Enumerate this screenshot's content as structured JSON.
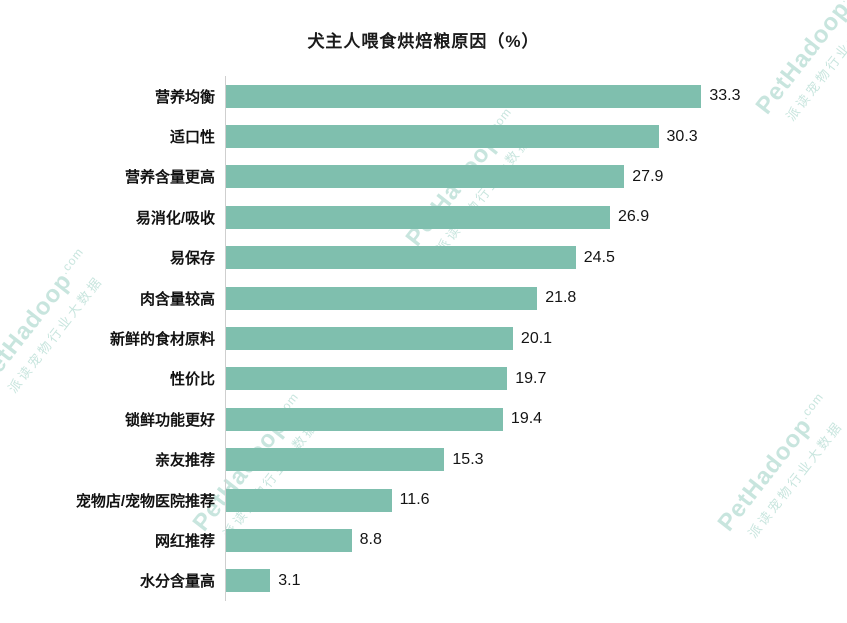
{
  "title": "犬主人喂食烘焙粮原因（%）",
  "watermark": {
    "brand": "PetHadoop",
    "brand_suffix": ".com",
    "text": "派读宠物行业大数据"
  },
  "colors": {
    "bar": "#7fbfae",
    "watermark": "rgba(134,198,182,0.45)",
    "axis": "#cfcfcf",
    "text": "#1a1a1a"
  },
  "chart_data": {
    "type": "bar",
    "orientation": "horizontal",
    "title": "犬主人喂食烘焙粮原因（%）",
    "categories": [
      "营养均衡",
      "适口性",
      "营养含量更高",
      "易消化/吸收",
      "易保存",
      "肉含量较高",
      "新鲜的食材原料",
      "性价比",
      "锁鲜功能更好",
      "亲友推荐",
      "宠物店/宠物医院推荐",
      "网红推荐",
      "水分含量高"
    ],
    "values": [
      33.3,
      30.3,
      27.9,
      26.9,
      24.5,
      21.8,
      20.1,
      19.7,
      19.4,
      15.3,
      11.6,
      8.8,
      3.1
    ],
    "xlabel": "",
    "ylabel": "",
    "xlim": [
      0,
      40
    ],
    "grid": false,
    "legend": false,
    "value_labels": true
  }
}
